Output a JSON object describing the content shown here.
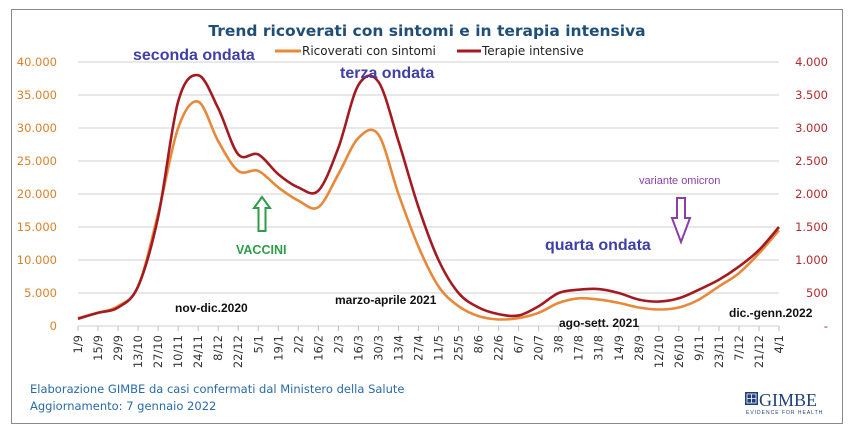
{
  "chart_data": {
    "type": "line",
    "title": "Trend ricoverati con sintomi e in terapia intensiva",
    "legend": [
      "Ricoverati con sintomi",
      "Terapie intensive"
    ],
    "legend_placement": "top-center",
    "grid": true,
    "categories": [
      "1/9",
      "15/9",
      "29/9",
      "13/10",
      "27/10",
      "10/11",
      "24/11",
      "8/12",
      "22/12",
      "5/1",
      "19/1",
      "2/2",
      "16/2",
      "2/3",
      "16/3",
      "30/3",
      "13/4",
      "27/4",
      "11/5",
      "25/5",
      "8/6",
      "22/6",
      "6/7",
      "20/7",
      "3/8",
      "17/8",
      "31/8",
      "14/9",
      "28/9",
      "12/10",
      "26/10",
      "9/11",
      "23/11",
      "7/12",
      "21/12",
      "4/1"
    ],
    "y_left": {
      "label": "Ricoverati con sintomi",
      "ylim": [
        0,
        40000
      ],
      "ticks": [
        "0",
        "5.000",
        "10.000",
        "15.000",
        "20.000",
        "25.000",
        "30.000",
        "35.000",
        "40.000"
      ],
      "color": "#e8883a"
    },
    "y_right": {
      "label": "Terapie intensive",
      "ylim": [
        0,
        4000
      ],
      "ticks": [
        "-",
        "500",
        "1.000",
        "1.500",
        "2.000",
        "2.500",
        "3.000",
        "3.500",
        "4.000"
      ],
      "color": "#b01e23"
    },
    "series": [
      {
        "name": "Ricoverati con sintomi",
        "axis": "left",
        "color": "#e8883a",
        "values": [
          1200,
          2000,
          3000,
          6000,
          17000,
          30000,
          34000,
          28000,
          23500,
          23500,
          21000,
          19000,
          18000,
          23000,
          28500,
          29000,
          20000,
          12000,
          6000,
          3000,
          1500,
          1000,
          1200,
          2000,
          3500,
          4200,
          4000,
          3500,
          2800,
          2500,
          2800,
          4000,
          6000,
          8000,
          11000,
          14500
        ]
      },
      {
        "name": "Terapie intensive",
        "axis": "right",
        "color": "#a31b21",
        "values": [
          110,
          200,
          280,
          600,
          1650,
          3400,
          3800,
          3300,
          2600,
          2600,
          2300,
          2100,
          2050,
          2700,
          3650,
          3700,
          2800,
          1800,
          1000,
          500,
          280,
          180,
          160,
          300,
          500,
          550,
          560,
          500,
          400,
          370,
          420,
          550,
          700,
          900,
          1150,
          1500
        ]
      }
    ],
    "annotations": [
      {
        "text": "seconda ondata",
        "near": "24/11"
      },
      {
        "text": "terza ondata",
        "near": "30/3"
      },
      {
        "text": "quarta ondata",
        "near": "31/8"
      },
      {
        "text": "nov-dic.2020",
        "near": "24/11"
      },
      {
        "text": "marzo-aprile 2021",
        "near": "16/3"
      },
      {
        "text": "ago-sett. 2021",
        "near": "31/8"
      },
      {
        "text": "dic.-genn.2022",
        "near": "21/12"
      },
      {
        "text": "VACCINI",
        "near": "5/1",
        "arrow": "up"
      },
      {
        "text": "variante omicron",
        "near": "26/10",
        "arrow": "down"
      }
    ]
  },
  "footer": {
    "source": "Elaborazione GIMBE da casi confermati dal Ministero della Salute",
    "updated": "Aggiornamento: 7 gennaio 2022"
  },
  "logo": {
    "name": "GIMBE",
    "tagline": "EVIDENCE FOR HEALTH"
  }
}
